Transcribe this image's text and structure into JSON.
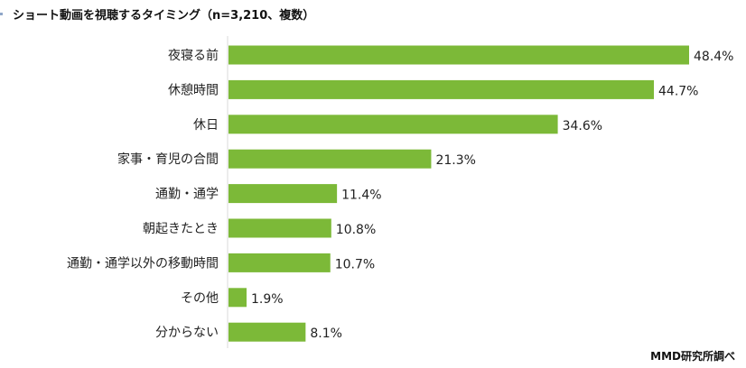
{
  "chart_data": {
    "type": "bar",
    "orientation": "horizontal",
    "title": "ショート動画を視聴するタイミング（n=3,210、複数）",
    "categories": [
      "夜寝る前",
      "休憩時間",
      "休日",
      "家事・育児の合間",
      "通勤・通学",
      "朝起きたとき",
      "通勤・通学以外の移動時間",
      "その他",
      "分からない"
    ],
    "values": [
      48.4,
      44.7,
      34.6,
      21.3,
      11.4,
      10.8,
      10.7,
      1.9,
      8.1
    ],
    "value_suffix": "%",
    "xlim": [
      0,
      50
    ],
    "grid": false,
    "color": "#7cb938"
  },
  "source": "MMD研究所調べ"
}
